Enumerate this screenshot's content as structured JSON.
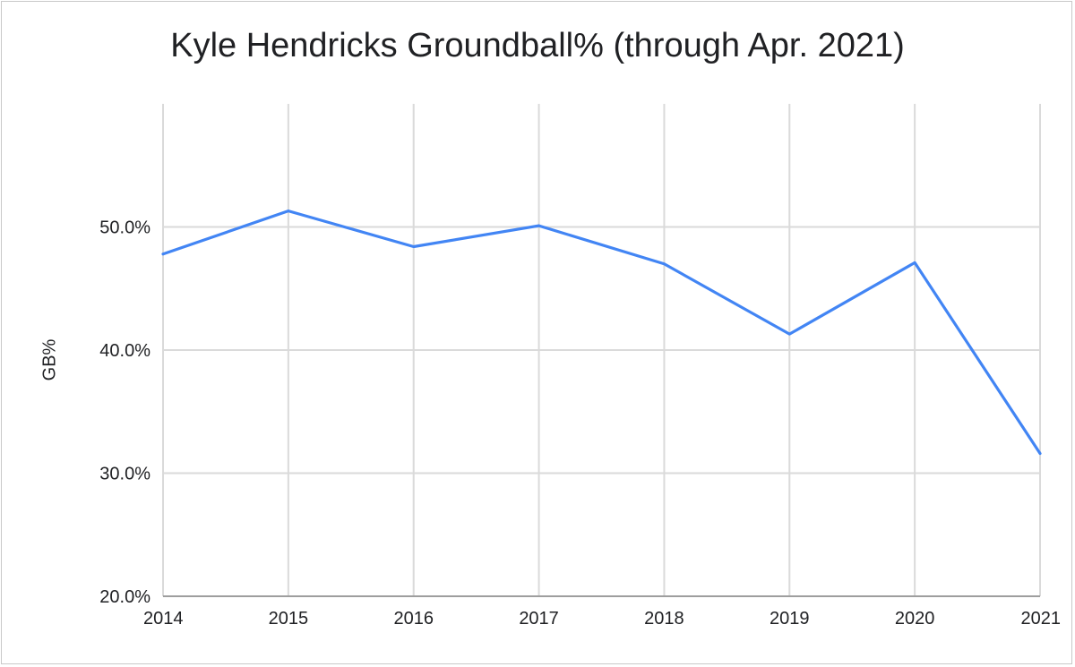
{
  "chart_data": {
    "type": "line",
    "title": "Kyle Hendricks Groundball% (through Apr. 2021)",
    "xlabel": "",
    "ylabel": "GB%",
    "x": [
      "2014",
      "2015",
      "2016",
      "2017",
      "2018",
      "2019",
      "2020",
      "2021"
    ],
    "series": [
      {
        "values": [
          47.8,
          51.3,
          48.4,
          50.1,
          47.0,
          41.3,
          47.1,
          31.6
        ]
      }
    ],
    "ylim": [
      20,
      60
    ],
    "yticks": [
      20,
      30,
      40,
      50
    ],
    "ytick_labels": [
      "20.0%",
      "30.0%",
      "40.0%",
      "50.0%"
    ],
    "grid": true,
    "line_color": "#4285f4",
    "grid_color": "#dadada"
  }
}
